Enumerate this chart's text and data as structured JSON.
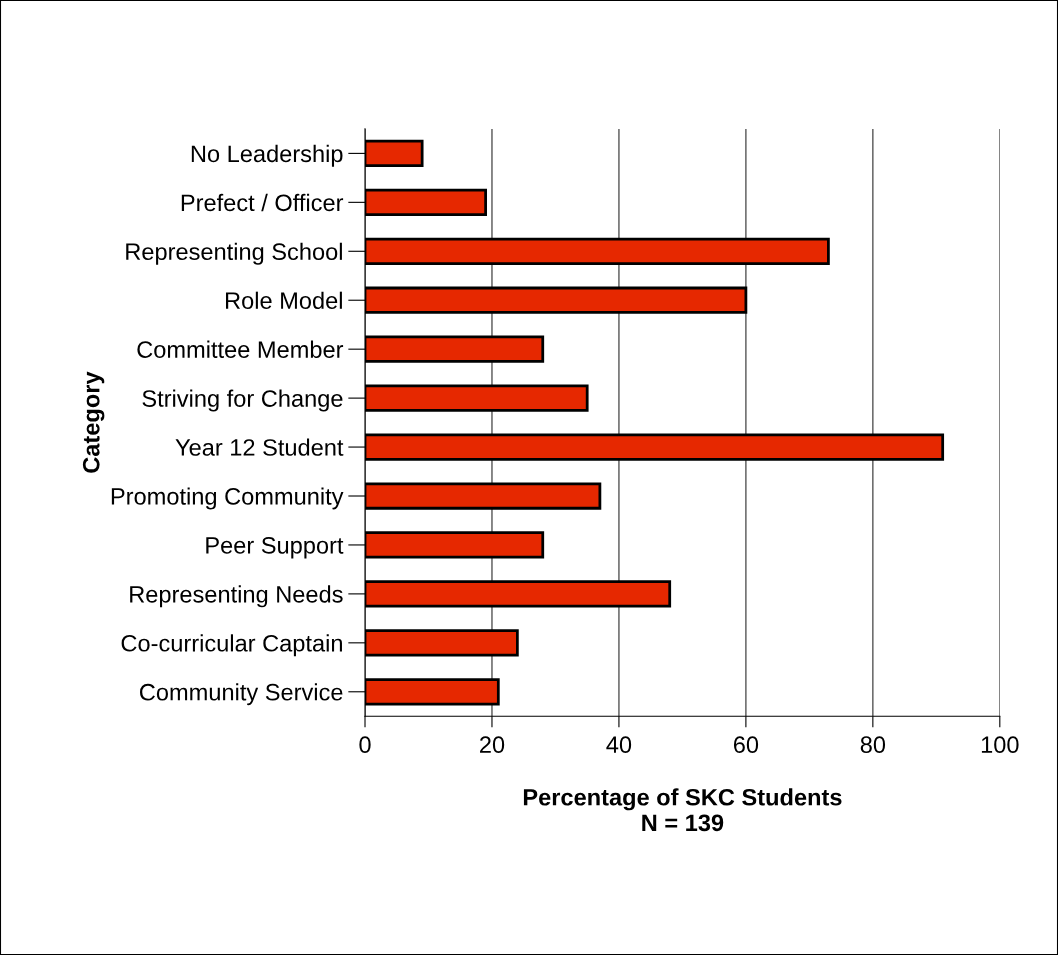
{
  "chart_data": {
    "type": "bar",
    "orientation": "horizontal",
    "categories": [
      "No Leadership",
      "Prefect / Officer",
      "Representing School",
      "Role Model",
      "Committee Member",
      "Striving for Change",
      "Year 12 Student",
      "Promoting Community",
      "Peer Support",
      "Representing Needs",
      "Co-curricular Captain",
      "Community Service"
    ],
    "values": [
      9,
      19,
      73,
      60,
      28,
      35,
      91,
      37,
      28,
      48,
      24,
      21
    ],
    "color": "#e62800",
    "xlabel": "Percentage of SKC Students\nN = 139",
    "ylabel": "Category",
    "xlim": [
      0,
      100
    ],
    "xticks": [
      0,
      20,
      40,
      60,
      80,
      100
    ],
    "grid": "x",
    "legend": false
  }
}
